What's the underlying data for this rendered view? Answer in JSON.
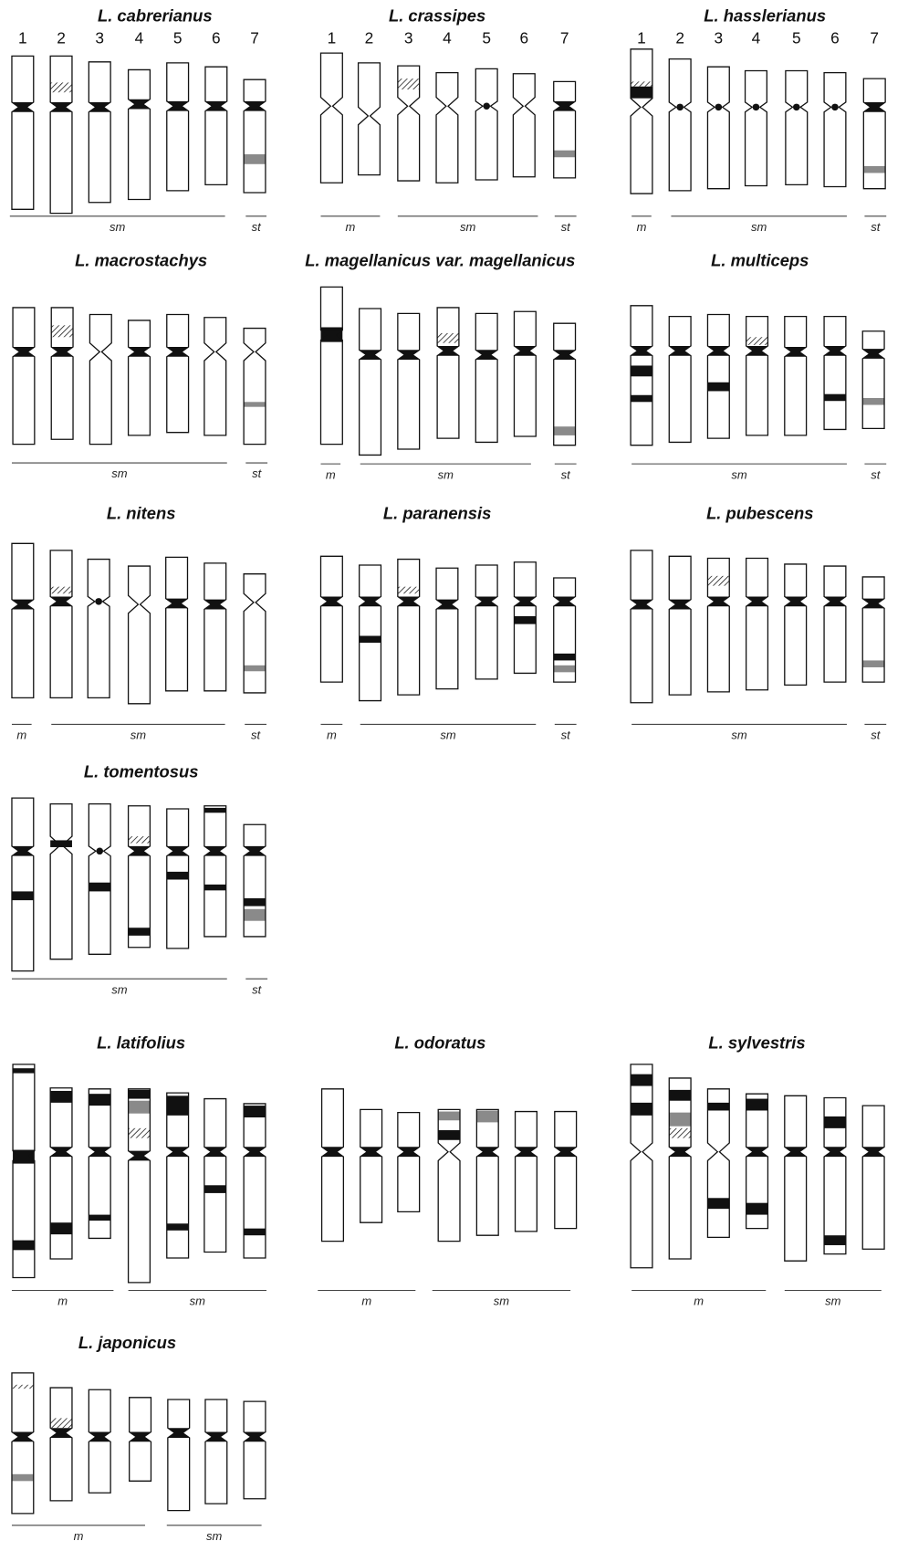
{
  "panels": [
    {
      "title": "L. cabrerianus",
      "numbers": [
        "1",
        "2",
        "3",
        "4",
        "5",
        "6",
        "7"
      ],
      "groups": [
        "sm",
        "st"
      ]
    },
    {
      "title": "L. crassipes",
      "numbers": [
        "1",
        "2",
        "3",
        "4",
        "5",
        "6",
        "7"
      ],
      "groups": [
        "m",
        "sm",
        "st"
      ]
    },
    {
      "title": "L. hasslerianus",
      "numbers": [
        "1",
        "2",
        "3",
        "4",
        "5",
        "6",
        "7"
      ],
      "groups": [
        "m",
        "sm",
        "st"
      ]
    },
    {
      "title": "L. macrostachys",
      "groups": [
        "sm",
        "st"
      ]
    },
    {
      "title": "L. magellanicus var. magellanicus",
      "groups": [
        "m",
        "sm",
        "st"
      ]
    },
    {
      "title": "L. multiceps",
      "groups": [
        "sm",
        "st"
      ]
    },
    {
      "title": "L. nitens",
      "groups": [
        "m",
        "sm",
        "st"
      ]
    },
    {
      "title": "L. paranensis",
      "groups": [
        "m",
        "sm",
        "st"
      ]
    },
    {
      "title": "L. pubescens",
      "groups": [
        "sm",
        "st"
      ]
    },
    {
      "title": "L. tomentosus",
      "groups": [
        "sm",
        "st"
      ]
    },
    {
      "title": "L. latifolius",
      "groups": [
        "m",
        "sm"
      ]
    },
    {
      "title": "L. odoratus",
      "groups": [
        "m",
        "sm"
      ]
    },
    {
      "title": "L. sylvestris",
      "groups": [
        "m",
        "sm"
      ]
    },
    {
      "title": "L. japonicus",
      "groups": [
        "m",
        "sm"
      ]
    }
  ]
}
